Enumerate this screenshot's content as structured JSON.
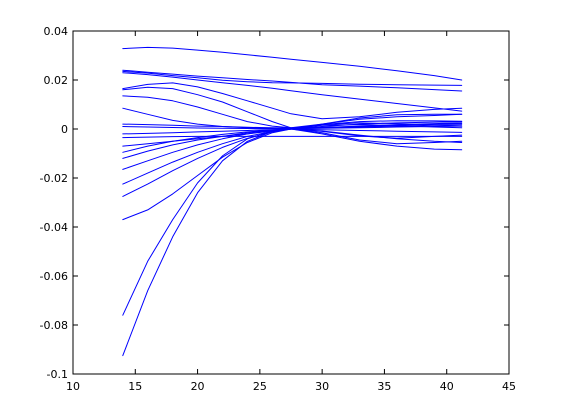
{
  "chart_data": {
    "type": "line",
    "title": "",
    "xlabel": "",
    "ylabel": "",
    "xlim": [
      10,
      45
    ],
    "ylim": [
      -0.1,
      0.04
    ],
    "xticks": [
      10,
      15,
      20,
      25,
      30,
      35,
      40,
      45
    ],
    "yticks": [
      -0.1,
      -0.08,
      -0.06,
      -0.04,
      -0.02,
      0,
      0.02,
      0.04
    ],
    "xtick_labels": [
      "10",
      "15",
      "20",
      "25",
      "30",
      "35",
      "40",
      "45"
    ],
    "ytick_labels": [
      "-0.1",
      "-0.08",
      "-0.06",
      "-0.04",
      "-0.02",
      "0",
      "0.02",
      "0.04"
    ],
    "grid": false,
    "line_color": "#0000ff",
    "x": [
      14,
      16,
      18,
      20,
      22,
      24,
      26,
      27.5,
      30,
      33,
      36,
      39,
      41.2
    ],
    "series": [
      {
        "values": [
          0.0328,
          0.0333,
          0.033,
          0.0322,
          0.0313,
          0.0303,
          0.0293,
          0.0285,
          0.0272,
          0.0256,
          0.0238,
          0.0218,
          0.02
        ]
      },
      {
        "values": [
          0.024,
          0.0232,
          0.0224,
          0.0216,
          0.0209,
          0.0202,
          0.0196,
          0.019,
          0.0181,
          0.0175,
          0.0168,
          0.0161,
          0.0155
        ]
      },
      {
        "values": [
          0.0235,
          0.0228,
          0.0218,
          0.0209,
          0.0199,
          0.0193,
          0.0189,
          0.0188,
          0.0186,
          0.0183,
          0.0181,
          0.0179,
          0.0178
        ]
      },
      {
        "values": [
          0.023,
          0.0222,
          0.0212,
          0.02,
          0.0189,
          0.0178,
          0.0166,
          0.0156,
          0.014,
          0.0122,
          0.0104,
          0.0086,
          0.0073
        ]
      },
      {
        "values": [
          0.0165,
          0.0182,
          0.0188,
          0.0172,
          0.0145,
          0.0115,
          0.0085,
          0.0062,
          0.0042,
          0.005,
          0.0068,
          0.008,
          0.0085
        ]
      },
      {
        "values": [
          0.016,
          0.017,
          0.0165,
          0.014,
          0.011,
          0.007,
          0.003,
          0.0005,
          0.002,
          0.004,
          0.005,
          0.0055,
          0.006
        ]
      },
      {
        "values": [
          0.0135,
          0.013,
          0.0115,
          0.009,
          0.006,
          0.003,
          0.0012,
          0.0005,
          0.0006,
          0.001,
          0.0015,
          0.002,
          0.0022
        ]
      },
      {
        "values": [
          0.0085,
          0.006,
          0.0035,
          0.002,
          0.001,
          0.0005,
          0.0003,
          0.0002,
          0.0003,
          0.0005,
          0.0008,
          0.001,
          0.0012
        ]
      },
      {
        "values": [
          0.002,
          0.0018,
          0.0015,
          0.0012,
          0.001,
          0.0007,
          0.0005,
          0.0004,
          0.0006,
          0.0012,
          0.0018,
          0.0022,
          0.0025
        ]
      },
      {
        "values": [
          0.001,
          0.0008,
          0.0006,
          0.0004,
          0.0003,
          0.0002,
          0.0001,
          0.0,
          -0.0003,
          -0.0006,
          -0.0009,
          -0.0012,
          -0.0014
        ]
      },
      {
        "values": [
          -0.002,
          -0.0018,
          -0.0015,
          -0.0012,
          -0.0009,
          -0.0006,
          -0.0003,
          0.0,
          0.0004,
          0.0008,
          0.0012,
          0.0015,
          0.0017
        ]
      },
      {
        "values": [
          -0.0035,
          -0.0033,
          -0.0031,
          -0.003,
          -0.003,
          -0.003,
          -0.003,
          -0.003,
          -0.003,
          -0.003,
          -0.003,
          -0.003,
          -0.003
        ]
      },
      {
        "values": [
          -0.007,
          -0.006,
          -0.005,
          -0.004,
          -0.003,
          -0.002,
          -0.0008,
          0.0,
          0.0018,
          0.003,
          0.0034,
          0.0033,
          0.0032
        ]
      },
      {
        "values": [
          -0.0095,
          -0.007,
          -0.005,
          -0.0035,
          -0.0022,
          -0.0012,
          -0.0004,
          0.0,
          -0.0008,
          -0.0025,
          -0.004,
          -0.005,
          -0.0055
        ]
      },
      {
        "values": [
          -0.012,
          -0.009,
          -0.0065,
          -0.0045,
          -0.003,
          -0.0015,
          -0.0005,
          0.0,
          -0.002,
          -0.005,
          -0.007,
          -0.0082,
          -0.0085
        ]
      },
      {
        "values": [
          -0.0165,
          -0.013,
          -0.0095,
          -0.0065,
          -0.004,
          -0.002,
          -0.0005,
          0.0,
          0.001,
          0.002,
          0.0025,
          0.0028,
          0.003
        ]
      },
      {
        "values": [
          -0.0225,
          -0.018,
          -0.0135,
          -0.0095,
          -0.006,
          -0.003,
          -0.001,
          0.0,
          0.002,
          0.0045,
          0.0058,
          0.006,
          0.006
        ]
      },
      {
        "values": [
          -0.0275,
          -0.0225,
          -0.017,
          -0.012,
          -0.0075,
          -0.0038,
          -0.0012,
          0.0,
          0.0018,
          0.0025,
          0.0022,
          0.0016,
          0.0012
        ]
      },
      {
        "values": [
          -0.037,
          -0.033,
          -0.0265,
          -0.019,
          -0.0115,
          -0.0055,
          -0.0015,
          0.0,
          0.0015,
          0.0018,
          0.0014,
          0.0008,
          0.0005
        ]
      },
      {
        "values": [
          -0.076,
          -0.054,
          -0.037,
          -0.022,
          -0.011,
          -0.004,
          -0.0008,
          0.0,
          -0.0015,
          -0.0045,
          -0.006,
          -0.0055,
          -0.005
        ]
      },
      {
        "values": [
          -0.0925,
          -0.066,
          -0.044,
          -0.026,
          -0.013,
          -0.005,
          -0.001,
          0.0,
          -0.001,
          -0.0028,
          -0.0038,
          -0.003,
          -0.0025
        ]
      }
    ]
  }
}
